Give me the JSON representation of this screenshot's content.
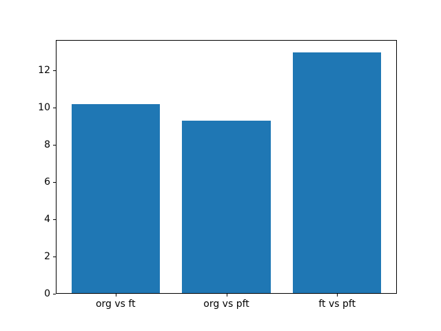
{
  "figure": {
    "background": "#ffffff",
    "text_color": "#000000"
  },
  "chart_data": {
    "type": "bar",
    "title": "",
    "xlabel": "",
    "ylabel": "",
    "categories": [
      "org vs ft",
      "org vs pft",
      "ft vs pft"
    ],
    "values": [
      10.2,
      9.3,
      13.0
    ],
    "bar_color": "#1f77b4",
    "bar_width": 0.8,
    "xlim": [
      -0.54,
      2.54
    ],
    "ylim": [
      0,
      13.65
    ],
    "yticks": [
      0,
      2,
      4,
      6,
      8,
      10,
      12
    ],
    "grid": false,
    "legend": null
  }
}
